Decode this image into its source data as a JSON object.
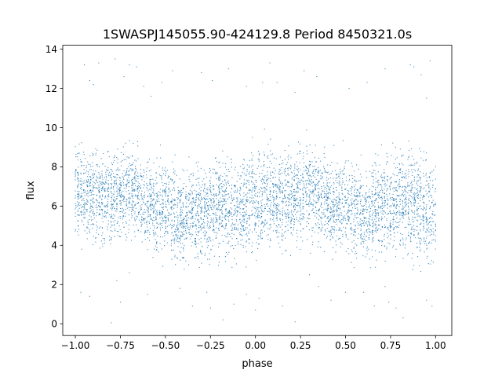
{
  "chart_data": {
    "type": "scatter",
    "title": "1SWASPJ145055.90-424129.8 Period 8450321.0s",
    "xlabel": "phase",
    "ylabel": "flux",
    "xlim": [
      -1.07,
      1.09
    ],
    "ylim": [
      -0.6,
      14.2
    ],
    "xticks": [
      -1.0,
      -0.75,
      -0.5,
      -0.25,
      0.0,
      0.25,
      0.5,
      0.75,
      1.0
    ],
    "xtick_labels": [
      "−1.00",
      "−0.75",
      "−0.50",
      "−0.25",
      "0.00",
      "0.25",
      "0.50",
      "0.75",
      "1.00"
    ],
    "yticks": [
      0,
      2,
      4,
      6,
      8,
      10,
      12,
      14
    ],
    "ytick_labels": [
      "0",
      "2",
      "4",
      "6",
      "8",
      "10",
      "12",
      "14"
    ],
    "grid": false,
    "legend": "none",
    "marker_color": "#1f77b4",
    "series": [
      {
        "profile_phase": [
          -1.0,
          -0.9,
          -0.8,
          -0.7,
          -0.6,
          -0.5,
          -0.4,
          -0.3,
          -0.2,
          -0.1,
          0.0,
          0.1,
          0.2,
          0.3,
          0.4,
          0.5,
          0.6,
          0.7,
          0.8,
          0.9,
          1.0
        ],
        "profile_flux_mean": [
          6.6,
          6.5,
          6.3,
          6.9,
          6.0,
          5.9,
          5.3,
          5.6,
          6.0,
          5.9,
          6.2,
          6.5,
          6.4,
          6.8,
          6.0,
          5.9,
          5.5,
          5.9,
          6.3,
          6.0,
          5.8
        ],
        "profile_flux_low": [
          3.8,
          4.0,
          3.9,
          4.2,
          3.4,
          3.2,
          2.9,
          3.1,
          3.3,
          3.0,
          2.8,
          3.8,
          3.8,
          4.0,
          3.4,
          3.3,
          3.1,
          3.2,
          3.4,
          3.0,
          2.7
        ],
        "profile_flux_high": [
          9.6,
          9.5,
          9.4,
          9.8,
          8.6,
          8.8,
          8.6,
          8.7,
          9.0,
          8.8,
          9.4,
          9.6,
          9.4,
          9.8,
          8.9,
          9.0,
          8.6,
          8.9,
          9.6,
          9.3,
          9.0
        ],
        "outlier_points": [
          [
            -0.95,
            13.2
          ],
          [
            -0.92,
            12.4
          ],
          [
            -0.9,
            12.2
          ],
          [
            -0.87,
            13.3
          ],
          [
            -0.78,
            13.5
          ],
          [
            -0.73,
            12.6
          ],
          [
            -0.7,
            13.2
          ],
          [
            -0.66,
            13.1
          ],
          [
            -0.62,
            12.1
          ],
          [
            -0.58,
            11.6
          ],
          [
            -0.52,
            12.3
          ],
          [
            -0.46,
            12.9
          ],
          [
            -0.3,
            12.8
          ],
          [
            -0.24,
            12.4
          ],
          [
            -0.15,
            13.0
          ],
          [
            -0.05,
            12.1
          ],
          [
            0.04,
            12.3
          ],
          [
            0.08,
            13.3
          ],
          [
            0.12,
            12.3
          ],
          [
            0.22,
            11.8
          ],
          [
            0.27,
            12.9
          ],
          [
            0.34,
            12.6
          ],
          [
            0.52,
            12.0
          ],
          [
            0.62,
            12.3
          ],
          [
            0.72,
            13.0
          ],
          [
            0.86,
            13.2
          ],
          [
            0.88,
            13.1
          ],
          [
            0.92,
            12.7
          ],
          [
            0.97,
            13.4
          ],
          [
            0.95,
            11.5
          ],
          [
            -0.97,
            1.6
          ],
          [
            -0.92,
            1.4
          ],
          [
            -0.77,
            2.2
          ],
          [
            -0.75,
            1.1
          ],
          [
            -0.7,
            2.6
          ],
          [
            -0.42,
            1.8
          ],
          [
            -0.35,
            0.9
          ],
          [
            -0.27,
            1.6
          ],
          [
            -0.25,
            0.8
          ],
          [
            -0.18,
            0.2
          ],
          [
            -0.12,
            1.0
          ],
          [
            0.0,
            0.7
          ],
          [
            0.02,
            1.3
          ],
          [
            0.15,
            0.9
          ],
          [
            0.22,
            0.1
          ],
          [
            0.35,
            1.9
          ],
          [
            0.42,
            1.2
          ],
          [
            0.6,
            1.6
          ],
          [
            0.72,
            1.9
          ],
          [
            0.74,
            1.1
          ],
          [
            0.78,
            0.8
          ],
          [
            0.82,
            0.3
          ],
          [
            0.95,
            1.2
          ],
          [
            0.98,
            0.9
          ],
          [
            -0.8,
            0.05
          ],
          [
            -0.6,
            1.5
          ],
          [
            0.5,
            1.6
          ],
          [
            0.66,
            0.9
          ],
          [
            -0.05,
            1.5
          ],
          [
            0.3,
            2.5
          ]
        ]
      }
    ]
  }
}
